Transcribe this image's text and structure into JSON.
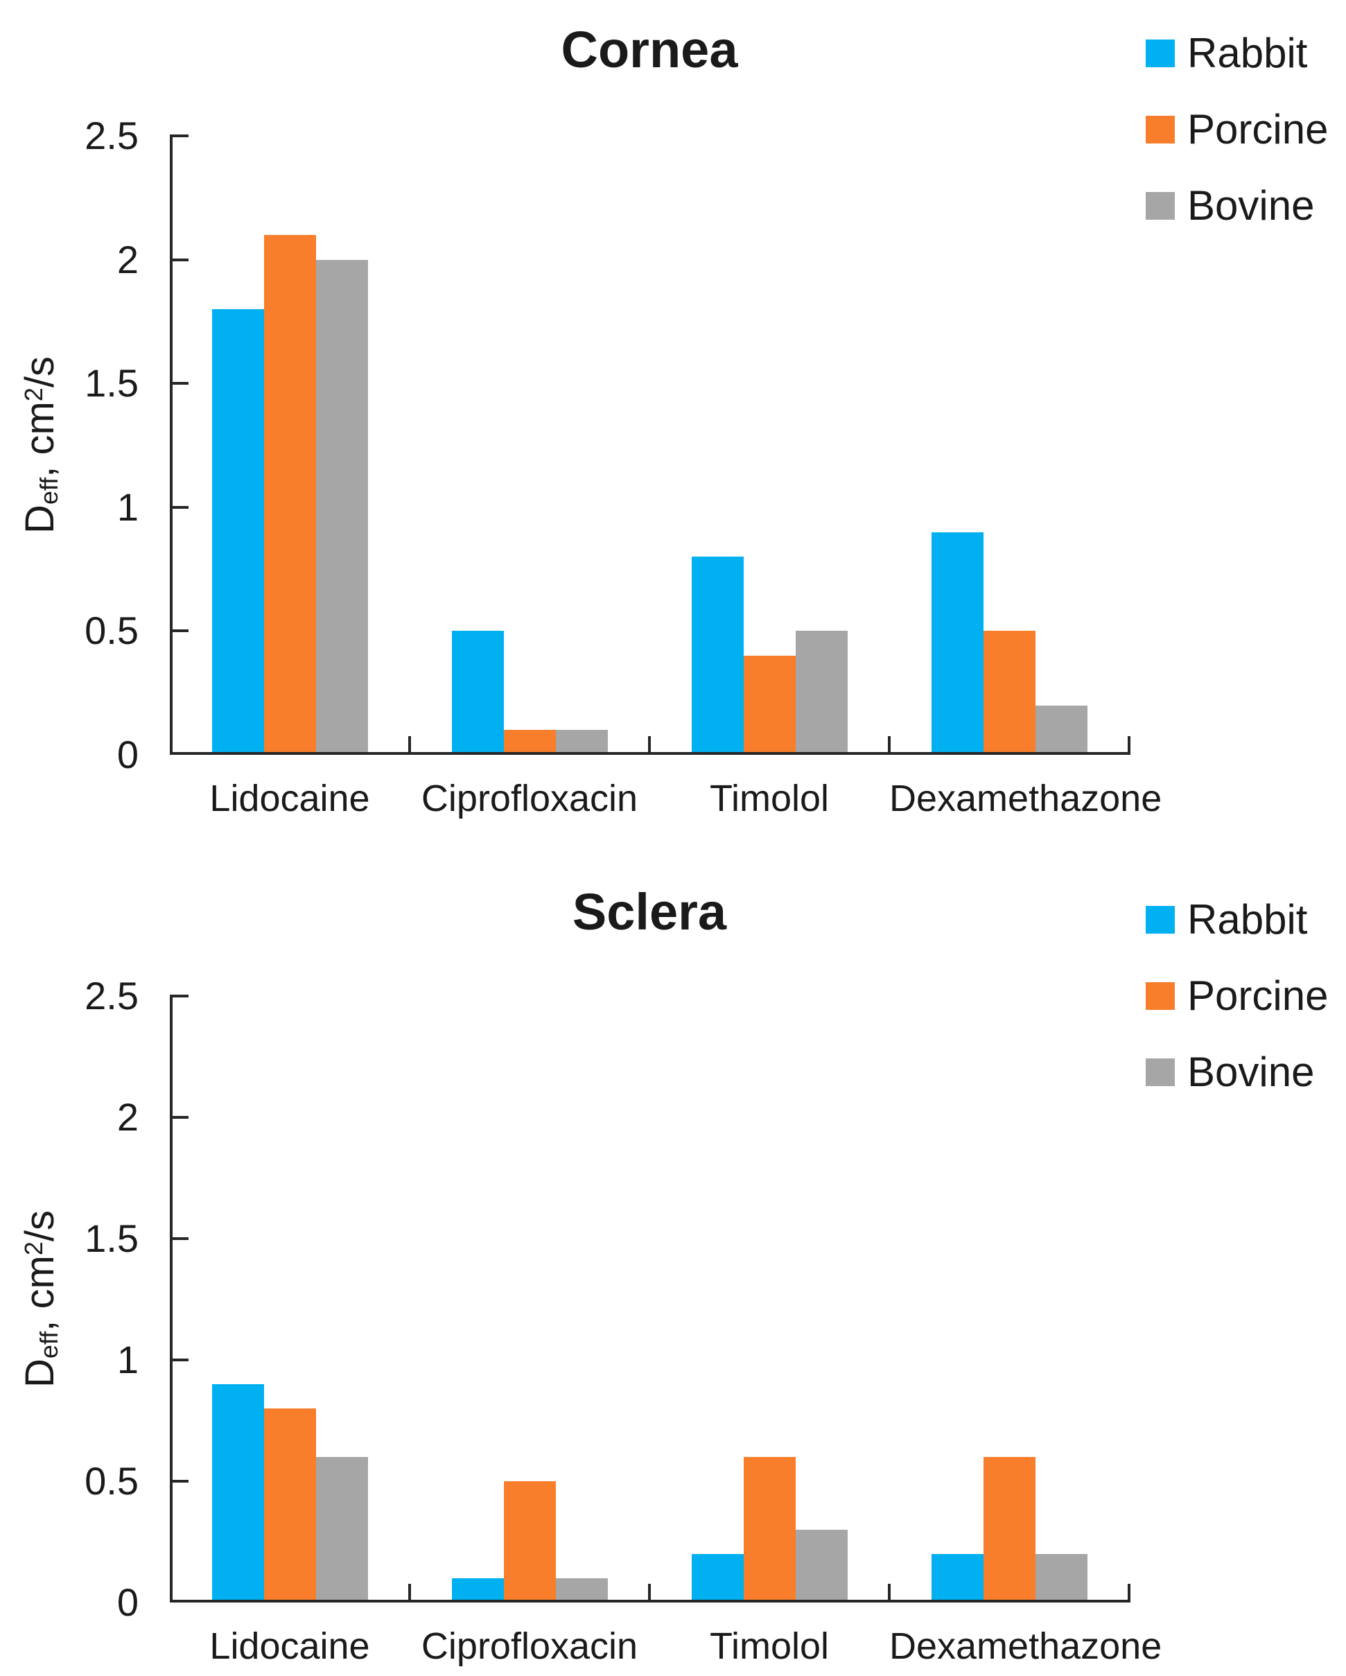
{
  "colors": {
    "background": "#ffffff",
    "axis": "#262626",
    "text": "#1a1a1a",
    "rabbit": "#00B0F0",
    "porcine": "#F87E2B",
    "bovine": "#A6A6A6"
  },
  "legend": {
    "items": [
      {
        "label": "Rabbit",
        "color": "#00B0F0"
      },
      {
        "label": "Porcine",
        "color": "#F87E2B"
      },
      {
        "label": "Bovine",
        "color": "#A6A6A6"
      }
    ]
  },
  "y_axis_title_parts": {
    "base": "D",
    "sub": "eff",
    "mid": ", cm",
    "sup": "2",
    "end": "/s"
  },
  "chart_data": [
    {
      "type": "bar",
      "title": "Cornea",
      "categories": [
        "Lidocaine",
        "Ciprofloxacin",
        "Timolol",
        "Dexamethazone"
      ],
      "series": [
        {
          "name": "Rabbit",
          "color": "#00B0F0",
          "values": [
            1.8,
            0.5,
            0.8,
            0.9
          ]
        },
        {
          "name": "Porcine",
          "color": "#F87E2B",
          "values": [
            2.1,
            0.1,
            0.4,
            0.5
          ]
        },
        {
          "name": "Bovine",
          "color": "#A6A6A6",
          "values": [
            2.0,
            0.1,
            0.5,
            0.2
          ]
        }
      ],
      "xlabel": "",
      "ylabel": "D_eff, cm^2/s",
      "ylim": [
        0,
        2.5
      ],
      "yticks": [
        0,
        0.5,
        1,
        1.5,
        2,
        2.5
      ],
      "ytick_labels": [
        "0",
        "0.5",
        "1",
        "1.5",
        "2",
        "2.5"
      ],
      "grid": false,
      "legend_position": "upper-right"
    },
    {
      "type": "bar",
      "title": "Sclera",
      "categories": [
        "Lidocaine",
        "Ciprofloxacin",
        "Timolol",
        "Dexamethazone"
      ],
      "series": [
        {
          "name": "Rabbit",
          "color": "#00B0F0",
          "values": [
            0.9,
            0.1,
            0.2,
            0.2
          ]
        },
        {
          "name": "Porcine",
          "color": "#F87E2B",
          "values": [
            0.8,
            0.5,
            0.6,
            0.6
          ]
        },
        {
          "name": "Bovine",
          "color": "#A6A6A6",
          "values": [
            0.6,
            0.1,
            0.3,
            0.2
          ]
        }
      ],
      "xlabel": "",
      "ylabel": "D_eff, cm^2/s",
      "ylim": [
        0,
        2.5
      ],
      "yticks": [
        0,
        0.5,
        1,
        1.5,
        2,
        2.5
      ],
      "ytick_labels": [
        "0",
        "0.5",
        "1",
        "1.5",
        "2",
        "2.5"
      ],
      "grid": false,
      "legend_position": "upper-right"
    }
  ]
}
